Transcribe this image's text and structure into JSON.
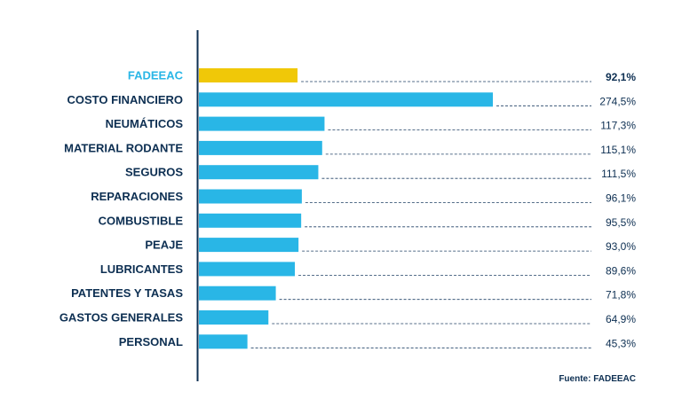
{
  "chart_data": {
    "type": "bar",
    "orientation": "horizontal",
    "categories": [
      "FADEEAC",
      "COSTO FINANCIERO",
      "NEUMÁTICOS",
      "MATERIAL RODANTE",
      "SEGUROS",
      "REPARACIONES",
      "COMBUSTIBLE",
      "PEAJE",
      "LUBRICANTES",
      "PATENTES Y TASAS",
      "GASTOS GENERALES",
      "PERSONAL"
    ],
    "values": [
      92.1,
      274.5,
      117.3,
      115.1,
      111.5,
      96.1,
      95.5,
      93.0,
      89.6,
      71.8,
      64.9,
      45.3
    ],
    "value_labels": [
      "92,1%",
      "274,5%",
      "117,3%",
      "115,1%",
      "111,5%",
      "96,1%",
      "95,5%",
      "93,0%",
      "89,6%",
      "71,8%",
      "64,9%",
      "45,3%"
    ],
    "highlighted_category": "FADEEAC",
    "title": "",
    "xlabel": "",
    "ylabel": "",
    "xlim": [
      0,
      274.5
    ],
    "grid": false,
    "legend": "none",
    "source": "Fuente: FADEEAC"
  },
  "colors": {
    "bar": "#29b6e6",
    "highlight_bar": "#f0c808",
    "highlight_label": "#29b6e6",
    "label": "#0d2f52",
    "axis": "#0d2f52",
    "leader": "#1d3f63"
  }
}
